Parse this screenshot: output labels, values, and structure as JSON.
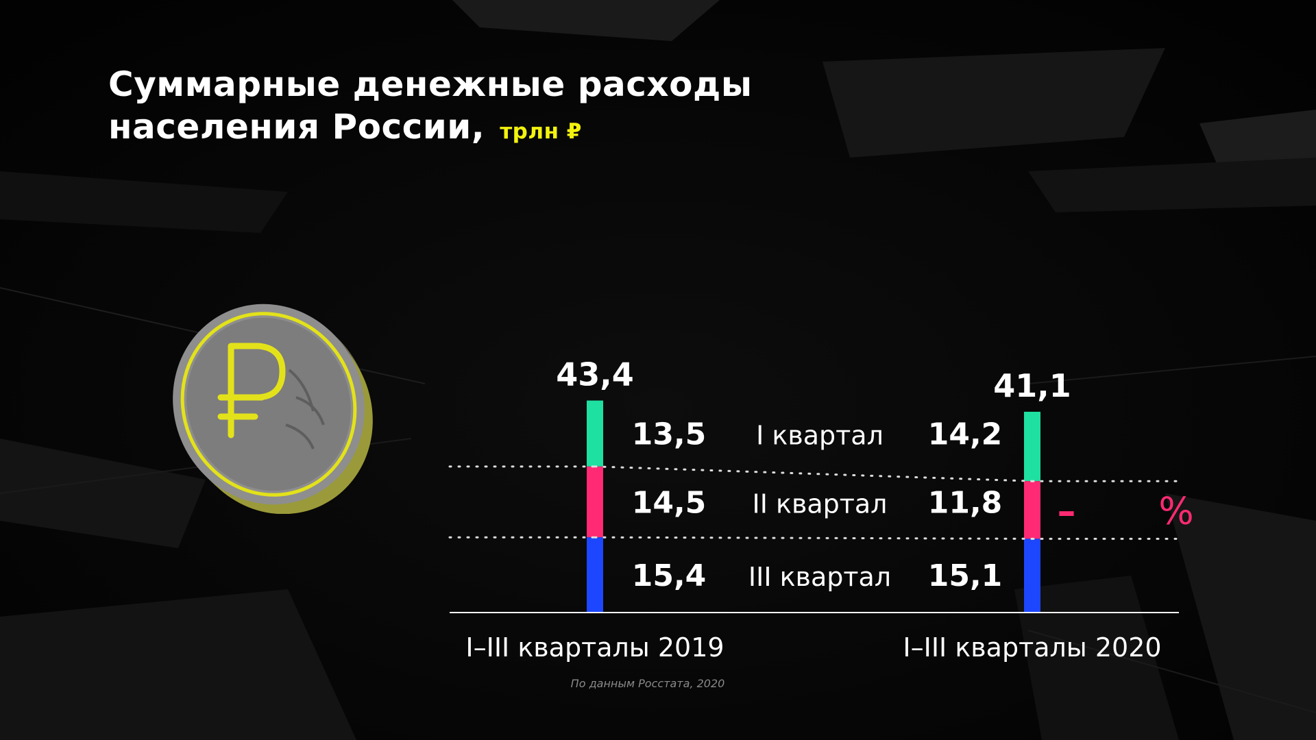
{
  "title": {
    "line1": "Суммарные денежные расходы",
    "line2": "населения России,",
    "unit": "трлн ₽"
  },
  "source": "По данным Росстата, 2020",
  "colors": {
    "q1": "#1ee0a0",
    "q2": "#ff2a73",
    "q3": "#1d47ff",
    "unit_accent": "#f3f20e",
    "change_accent": "#ff2a73"
  },
  "icons": {
    "coin": "ruble-coin-icon"
  },
  "chart_data": {
    "type": "bar",
    "stacked": true,
    "categories": [
      "I–III кварталы 2019",
      "I–III кварталы 2020"
    ],
    "series": [
      {
        "name": "I квартал",
        "values": [
          13.5,
          14.2
        ],
        "labels": [
          "13,5",
          "14,2"
        ]
      },
      {
        "name": "II квартал",
        "values": [
          14.5,
          11.8
        ],
        "labels": [
          "14,5",
          "11,8"
        ]
      },
      {
        "name": "III квартал",
        "values": [
          15.4,
          15.1
        ],
        "labels": [
          "15,4",
          "15,1"
        ]
      }
    ],
    "totals": [
      43.4,
      41.1
    ],
    "total_labels": [
      "43,4",
      "41,1"
    ],
    "annotation": {
      "minus": "–",
      "percent": "%"
    },
    "title": "Суммарные денежные расходы населения России, трлн ₽",
    "xlabel": "",
    "ylabel": "",
    "grid": false
  }
}
